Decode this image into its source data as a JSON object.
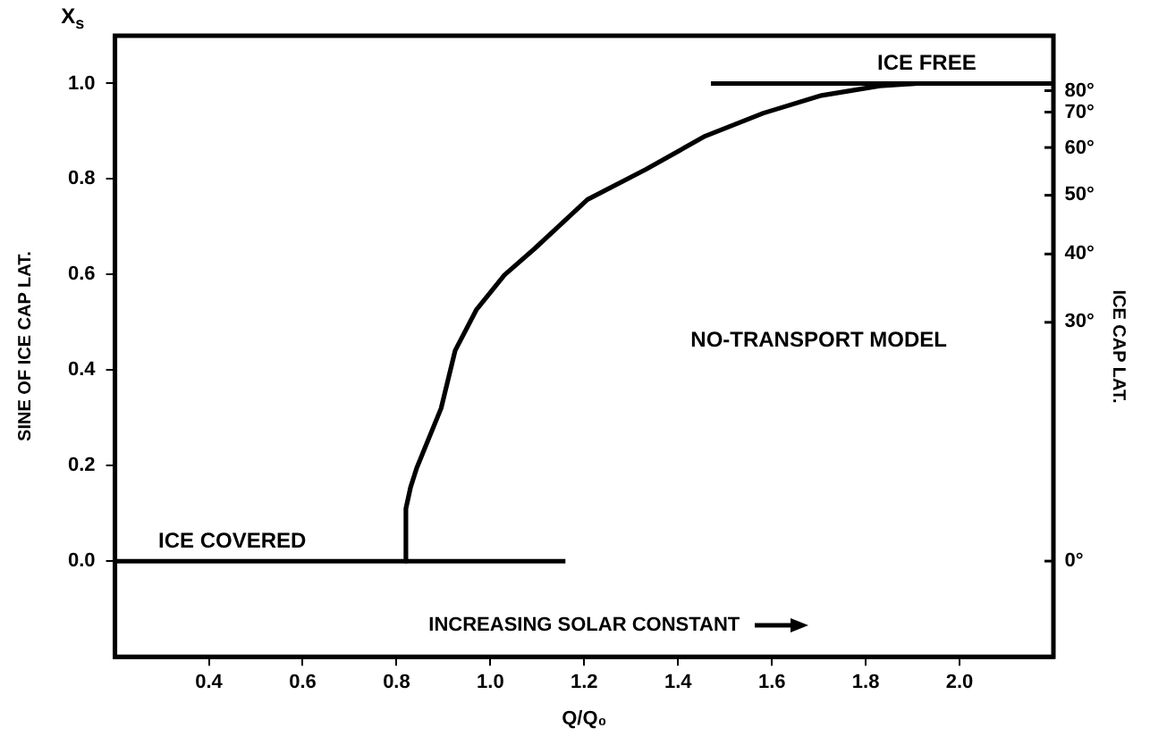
{
  "chart_data": {
    "type": "line",
    "xlabel": "Q/Q₀",
    "ylabel": "SINE OF ICE CAP LAT.",
    "xlim": [
      0.2,
      2.2
    ],
    "xticks": [
      {
        "value": 0.4,
        "label": "0.4"
      },
      {
        "value": 0.6,
        "label": "0.6"
      },
      {
        "value": 0.8,
        "label": "0.8"
      },
      {
        "value": 1,
        "label": "1.0"
      },
      {
        "value": 1.2,
        "label": "1.2"
      },
      {
        "value": 1.4,
        "label": "1.4"
      },
      {
        "value": 1.6,
        "label": "1.6"
      },
      {
        "value": 1.8,
        "label": "1.8"
      },
      {
        "value": 2,
        "label": "2.0"
      }
    ],
    "ylim": [
      -0.2,
      1.1
    ],
    "yticks": [
      {
        "value": 0,
        "label": "0.0"
      },
      {
        "value": 0.2,
        "label": "0.2"
      },
      {
        "value": 0.4,
        "label": "0.4"
      },
      {
        "value": 0.6,
        "label": "0.6"
      },
      {
        "value": 0.8,
        "label": "0.8"
      },
      {
        "value": 1,
        "label": "1.0"
      }
    ],
    "series": [
      {
        "color": "#000000",
        "x": [
          0.2,
          1.16
        ],
        "values": [
          0,
          0
        ]
      },
      {
        "color": "#000000",
        "x": [
          0.817,
          0.82,
          0.83,
          0.843,
          0.895,
          0.925,
          0.97,
          1.03,
          1.094,
          1.207,
          1.331,
          1.458,
          1.582,
          1.706,
          1.83,
          1.91
        ],
        "values": [
          0,
          0.11,
          0.155,
          0.195,
          0.32,
          0.441,
          0.526,
          0.599,
          0.654,
          0.757,
          0.82,
          0.89,
          0.938,
          0.975,
          0.995,
          1.0
        ]
      },
      {
        "color": "#000000",
        "x": [
          1.47,
          2.2
        ],
        "values": [
          1,
          1
        ]
      }
    ],
    "annotations": [
      {
        "text": "ICE COVERED",
        "x": 0.45,
        "y": 0
      },
      {
        "text": "ICE FREE",
        "x": 1.93,
        "y": 1
      },
      "NO-TRANSPORT MODEL",
      "INCREASING SOLAR CONSTANT",
      "X$_{s}$",
      "0°",
      "30°",
      "40°",
      "50°",
      "60°",
      "70°",
      "80°",
      "ICE CAP LAT."
    ],
    "grid": false,
    "legend": false,
    "marker": "none",
    "line_style": "solid"
  }
}
